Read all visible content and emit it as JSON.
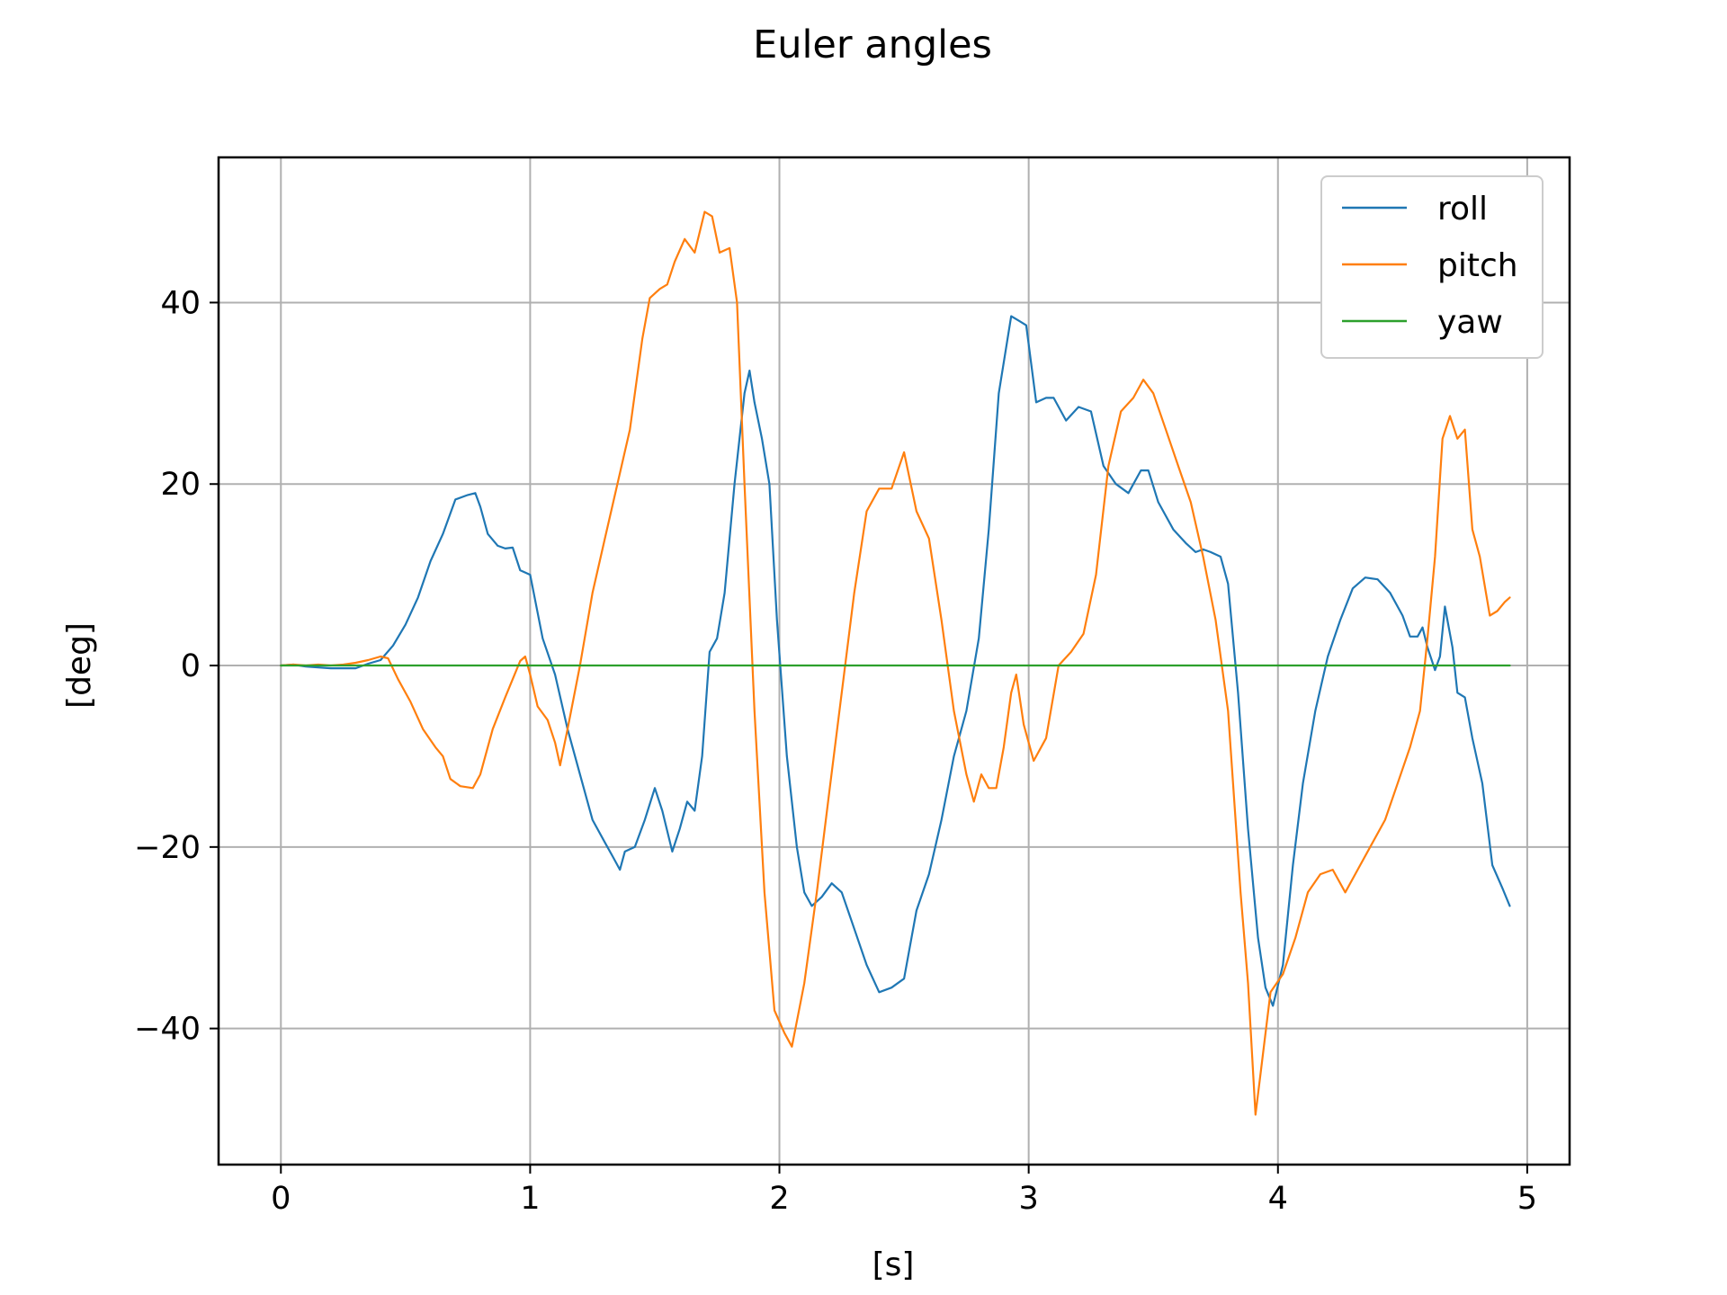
{
  "chart_data": {
    "type": "line",
    "title": "Euler angles",
    "xlabel": "[s]",
    "ylabel": "[deg]",
    "xlim": [
      -0.25,
      5.17
    ],
    "ylim": [
      -55,
      56
    ],
    "xticks": [
      0,
      1,
      2,
      3,
      4,
      5
    ],
    "xtick_labels": [
      "0",
      "1",
      "2",
      "3",
      "4",
      "5"
    ],
    "yticks": [
      -40,
      -20,
      0,
      20,
      40
    ],
    "ytick_labels": [
      "−40",
      "−20",
      "0",
      "20",
      "40"
    ],
    "grid": true,
    "legend_position": "top-right",
    "series": [
      {
        "name": "roll",
        "color": "#1f77b4",
        "points": [
          [
            0.0,
            0.0
          ],
          [
            0.05,
            0.1
          ],
          [
            0.1,
            -0.1
          ],
          [
            0.15,
            -0.2
          ],
          [
            0.2,
            -0.3
          ],
          [
            0.25,
            -0.3
          ],
          [
            0.3,
            -0.3
          ],
          [
            0.35,
            0.2
          ],
          [
            0.4,
            0.6
          ],
          [
            0.45,
            2.2
          ],
          [
            0.5,
            4.5
          ],
          [
            0.55,
            7.5
          ],
          [
            0.6,
            11.5
          ],
          [
            0.65,
            14.5
          ],
          [
            0.7,
            18.3
          ],
          [
            0.75,
            18.8
          ],
          [
            0.78,
            19.0
          ],
          [
            0.8,
            17.5
          ],
          [
            0.83,
            14.5
          ],
          [
            0.87,
            13.2
          ],
          [
            0.9,
            12.9
          ],
          [
            0.93,
            13.0
          ],
          [
            0.96,
            10.5
          ],
          [
            1.0,
            10.0
          ],
          [
            1.05,
            3.0
          ],
          [
            1.1,
            -1.0
          ],
          [
            1.15,
            -7.0
          ],
          [
            1.2,
            -12.0
          ],
          [
            1.25,
            -17.0
          ],
          [
            1.3,
            -19.5
          ],
          [
            1.33,
            -21.0
          ],
          [
            1.36,
            -22.5
          ],
          [
            1.38,
            -20.5
          ],
          [
            1.42,
            -20.0
          ],
          [
            1.46,
            -17.0
          ],
          [
            1.5,
            -13.5
          ],
          [
            1.53,
            -16.0
          ],
          [
            1.57,
            -20.5
          ],
          [
            1.6,
            -18.0
          ],
          [
            1.63,
            -15.0
          ],
          [
            1.66,
            -16.0
          ],
          [
            1.69,
            -10.0
          ],
          [
            1.72,
            1.5
          ],
          [
            1.75,
            3.0
          ],
          [
            1.78,
            8.0
          ],
          [
            1.82,
            20.0
          ],
          [
            1.86,
            30.0
          ],
          [
            1.88,
            32.5
          ],
          [
            1.9,
            29.0
          ],
          [
            1.93,
            25.0
          ],
          [
            1.96,
            20.0
          ],
          [
            1.99,
            5.0
          ],
          [
            2.03,
            -10.0
          ],
          [
            2.07,
            -20.0
          ],
          [
            2.1,
            -25.0
          ],
          [
            2.13,
            -26.5
          ],
          [
            2.17,
            -25.5
          ],
          [
            2.21,
            -24.0
          ],
          [
            2.25,
            -25.0
          ],
          [
            2.3,
            -29.0
          ],
          [
            2.35,
            -33.0
          ],
          [
            2.4,
            -36.0
          ],
          [
            2.45,
            -35.5
          ],
          [
            2.5,
            -34.5
          ],
          [
            2.55,
            -27.0
          ],
          [
            2.6,
            -23.0
          ],
          [
            2.65,
            -17.0
          ],
          [
            2.7,
            -10.0
          ],
          [
            2.75,
            -5.0
          ],
          [
            2.8,
            3.0
          ],
          [
            2.84,
            15.0
          ],
          [
            2.88,
            30.0
          ],
          [
            2.93,
            38.5
          ],
          [
            2.96,
            38.0
          ],
          [
            2.99,
            37.5
          ],
          [
            3.03,
            29.0
          ],
          [
            3.07,
            29.5
          ],
          [
            3.1,
            29.5
          ],
          [
            3.15,
            27.0
          ],
          [
            3.2,
            28.5
          ],
          [
            3.25,
            28.0
          ],
          [
            3.3,
            22.0
          ],
          [
            3.35,
            20.0
          ],
          [
            3.4,
            19.0
          ],
          [
            3.45,
            21.5
          ],
          [
            3.48,
            21.5
          ],
          [
            3.52,
            18.0
          ],
          [
            3.58,
            15.0
          ],
          [
            3.63,
            13.5
          ],
          [
            3.67,
            12.5
          ],
          [
            3.7,
            12.8
          ],
          [
            3.73,
            12.5
          ],
          [
            3.77,
            12.0
          ],
          [
            3.8,
            9.0
          ],
          [
            3.84,
            -3.0
          ],
          [
            3.88,
            -18.0
          ],
          [
            3.92,
            -30.0
          ],
          [
            3.95,
            -35.5
          ],
          [
            3.98,
            -37.5
          ],
          [
            4.02,
            -33.0
          ],
          [
            4.06,
            -22.0
          ],
          [
            4.1,
            -13.0
          ],
          [
            4.15,
            -5.0
          ],
          [
            4.2,
            1.0
          ],
          [
            4.25,
            5.0
          ],
          [
            4.3,
            8.5
          ],
          [
            4.35,
            9.7
          ],
          [
            4.4,
            9.5
          ],
          [
            4.45,
            8.0
          ],
          [
            4.5,
            5.5
          ],
          [
            4.53,
            3.2
          ],
          [
            4.56,
            3.2
          ],
          [
            4.58,
            4.2
          ],
          [
            4.6,
            2.0
          ],
          [
            4.63,
            -0.5
          ],
          [
            4.65,
            1.0
          ],
          [
            4.67,
            6.5
          ],
          [
            4.7,
            2.0
          ],
          [
            4.72,
            -3.0
          ],
          [
            4.75,
            -3.5
          ],
          [
            4.78,
            -8.0
          ],
          [
            4.82,
            -13.0
          ],
          [
            4.86,
            -22.0
          ],
          [
            4.9,
            -24.5
          ],
          [
            4.93,
            -26.5
          ]
        ]
      },
      {
        "name": "pitch",
        "color": "#ff7f0e",
        "points": [
          [
            0.0,
            0.0
          ],
          [
            0.05,
            0.1
          ],
          [
            0.1,
            0.0
          ],
          [
            0.15,
            0.1
          ],
          [
            0.2,
            0.0
          ],
          [
            0.25,
            0.1
          ],
          [
            0.3,
            0.3
          ],
          [
            0.35,
            0.6
          ],
          [
            0.4,
            1.0
          ],
          [
            0.43,
            0.8
          ],
          [
            0.47,
            -1.5
          ],
          [
            0.52,
            -4.0
          ],
          [
            0.57,
            -7.0
          ],
          [
            0.62,
            -9.0
          ],
          [
            0.65,
            -10.0
          ],
          [
            0.68,
            -12.5
          ],
          [
            0.72,
            -13.3
          ],
          [
            0.77,
            -13.5
          ],
          [
            0.8,
            -12.0
          ],
          [
            0.85,
            -7.0
          ],
          [
            0.9,
            -3.5
          ],
          [
            0.93,
            -1.5
          ],
          [
            0.96,
            0.5
          ],
          [
            0.98,
            1.0
          ],
          [
            1.0,
            -1.0
          ],
          [
            1.03,
            -4.5
          ],
          [
            1.07,
            -6.0
          ],
          [
            1.1,
            -8.5
          ],
          [
            1.12,
            -11.0
          ],
          [
            1.15,
            -7.0
          ],
          [
            1.2,
            0.0
          ],
          [
            1.25,
            8.0
          ],
          [
            1.3,
            14.0
          ],
          [
            1.35,
            20.0
          ],
          [
            1.4,
            26.0
          ],
          [
            1.45,
            36.0
          ],
          [
            1.48,
            40.5
          ],
          [
            1.52,
            41.5
          ],
          [
            1.55,
            42.0
          ],
          [
            1.58,
            44.5
          ],
          [
            1.62,
            47.0
          ],
          [
            1.66,
            45.5
          ],
          [
            1.7,
            50.0
          ],
          [
            1.73,
            49.5
          ],
          [
            1.76,
            45.5
          ],
          [
            1.8,
            46.0
          ],
          [
            1.83,
            40.0
          ],
          [
            1.86,
            20.0
          ],
          [
            1.9,
            -5.0
          ],
          [
            1.94,
            -25.0
          ],
          [
            1.98,
            -38.0
          ],
          [
            2.02,
            -40.5
          ],
          [
            2.05,
            -42.0
          ],
          [
            2.1,
            -35.0
          ],
          [
            2.15,
            -25.0
          ],
          [
            2.2,
            -14.0
          ],
          [
            2.25,
            -3.0
          ],
          [
            2.3,
            8.0
          ],
          [
            2.35,
            17.0
          ],
          [
            2.4,
            19.5
          ],
          [
            2.45,
            19.5
          ],
          [
            2.5,
            23.5
          ],
          [
            2.55,
            17.0
          ],
          [
            2.6,
            14.0
          ],
          [
            2.65,
            5.0
          ],
          [
            2.7,
            -5.0
          ],
          [
            2.75,
            -12.0
          ],
          [
            2.78,
            -15.0
          ],
          [
            2.81,
            -12.0
          ],
          [
            2.84,
            -13.5
          ],
          [
            2.87,
            -13.5
          ],
          [
            2.9,
            -9.0
          ],
          [
            2.93,
            -3.0
          ],
          [
            2.95,
            -1.0
          ],
          [
            2.98,
            -6.5
          ],
          [
            3.02,
            -10.5
          ],
          [
            3.07,
            -8.0
          ],
          [
            3.12,
            0.0
          ],
          [
            3.17,
            1.5
          ],
          [
            3.22,
            3.5
          ],
          [
            3.27,
            10.0
          ],
          [
            3.32,
            22.0
          ],
          [
            3.37,
            28.0
          ],
          [
            3.42,
            29.5
          ],
          [
            3.46,
            31.5
          ],
          [
            3.5,
            30.0
          ],
          [
            3.55,
            26.0
          ],
          [
            3.6,
            22.0
          ],
          [
            3.65,
            18.0
          ],
          [
            3.7,
            12.0
          ],
          [
            3.75,
            5.0
          ],
          [
            3.8,
            -5.0
          ],
          [
            3.85,
            -25.0
          ],
          [
            3.88,
            -35.0
          ],
          [
            3.91,
            -49.5
          ],
          [
            3.93,
            -45.0
          ],
          [
            3.97,
            -36.0
          ],
          [
            4.02,
            -34.0
          ],
          [
            4.07,
            -30.0
          ],
          [
            4.12,
            -25.0
          ],
          [
            4.17,
            -23.0
          ],
          [
            4.22,
            -22.5
          ],
          [
            4.27,
            -25.0
          ],
          [
            4.32,
            -22.5
          ],
          [
            4.37,
            -20.0
          ],
          [
            4.43,
            -17.0
          ],
          [
            4.48,
            -13.0
          ],
          [
            4.53,
            -9.0
          ],
          [
            4.57,
            -5.0
          ],
          [
            4.6,
            3.0
          ],
          [
            4.63,
            12.0
          ],
          [
            4.66,
            25.0
          ],
          [
            4.69,
            27.5
          ],
          [
            4.72,
            25.0
          ],
          [
            4.75,
            26.0
          ],
          [
            4.78,
            15.0
          ],
          [
            4.81,
            12.0
          ],
          [
            4.85,
            5.5
          ],
          [
            4.88,
            6.0
          ],
          [
            4.91,
            7.0
          ],
          [
            4.93,
            7.5
          ]
        ]
      },
      {
        "name": "yaw",
        "color": "#2ca02c",
        "points": [
          [
            0.0,
            0.0
          ],
          [
            4.93,
            0.0
          ]
        ]
      }
    ]
  }
}
